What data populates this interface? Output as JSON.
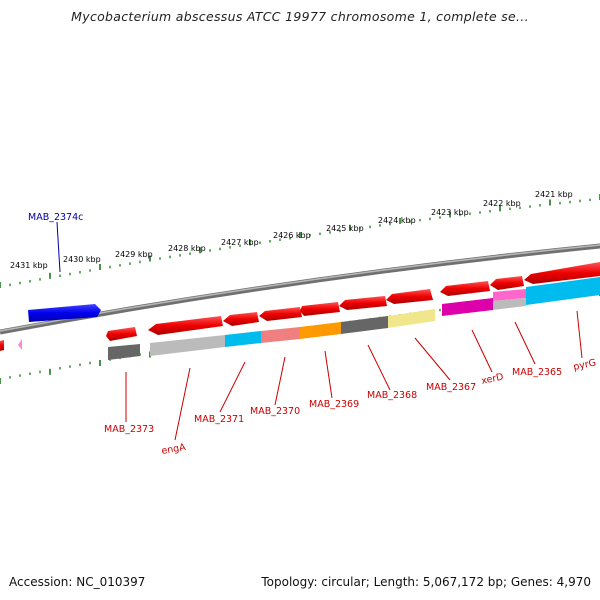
{
  "title": "Mycobacterium abscessus ATCC 19977 chromosome 1, complete se...",
  "accession": "Accession: NC_010397",
  "topology": "Topology: circular; Length: 5,067,172 bp; Genes: 4,970",
  "colors": {
    "backbone": "#8a8a8a",
    "ticks": "#1a7a1a",
    "label_red": "#cc0000",
    "label_blue": "#0000aa"
  },
  "kbp_labels": [
    "2431 kbp",
    "2430 kbp",
    "2429 kbp",
    "2428 kbp",
    "2427 kbp",
    "2426 kbp",
    "2425 kbp",
    "2424 kbp",
    "2423 kbp",
    "2422 kbp",
    "2421 kbp"
  ],
  "gene_labels": [
    {
      "text": "MAB_2374c",
      "color": "#0000aa"
    },
    {
      "text": "MAB_2373",
      "color": "#cc0000"
    },
    {
      "text": "engA",
      "color": "#cc0000"
    },
    {
      "text": "MAB_2371",
      "color": "#cc0000"
    },
    {
      "text": "MAB_2370",
      "color": "#cc0000"
    },
    {
      "text": "MAB_2369",
      "color": "#cc0000"
    },
    {
      "text": "MAB_2368",
      "color": "#cc0000"
    },
    {
      "text": "MAB_2367",
      "color": "#cc0000"
    },
    {
      "text": "xerD",
      "color": "#cc0000"
    },
    {
      "text": "MAB_2365",
      "color": "#cc0000"
    },
    {
      "text": "pyrG",
      "color": "#cc0000"
    }
  ]
}
